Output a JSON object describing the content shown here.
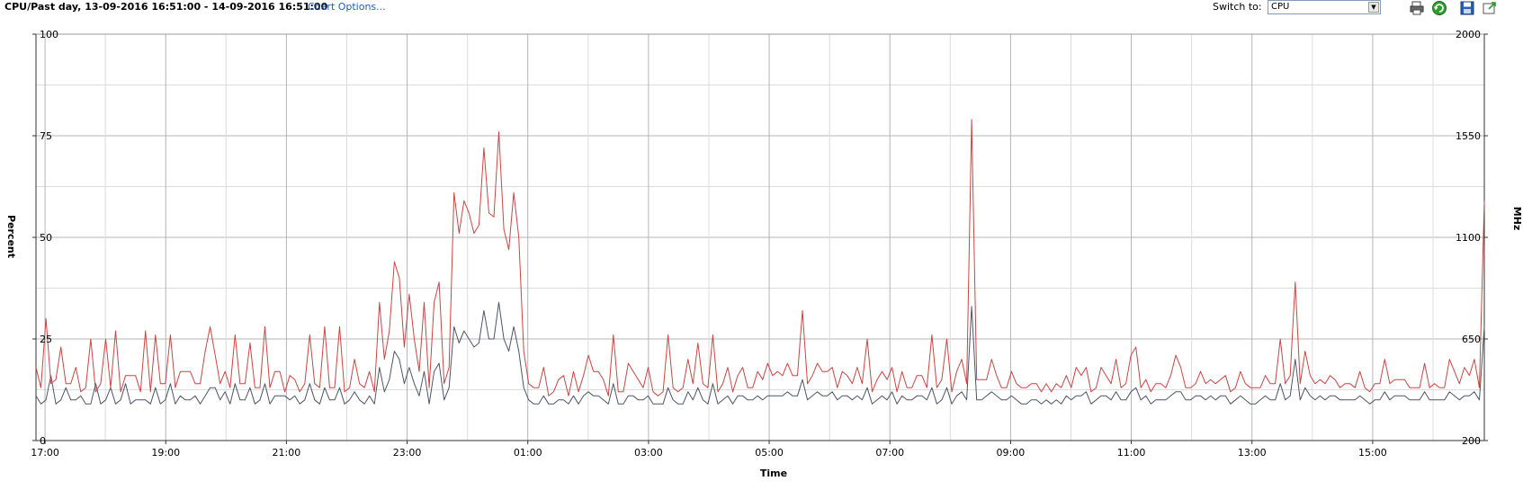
{
  "header": {
    "title": "CPU/Past day, 13-09-2016 16:51:00 - 14-09-2016 16:51:00",
    "chart_options_label": "Chart Options...",
    "switch_label": "Switch to:",
    "switch_value": "CPU"
  },
  "toolbar": {
    "icons": [
      "print-icon",
      "refresh-icon",
      "save-icon",
      "export-icon"
    ]
  },
  "colors": {
    "usage_line": "#cc4444",
    "usage_mhz_line": "#4d5566",
    "grid_major": "#b4b4b4",
    "grid_minor": "#dcdcdc"
  },
  "chart_data": {
    "type": "line",
    "title": "",
    "xlabel": "Time",
    "ylabel": "Percent",
    "y2label": "MHz",
    "ylim": [
      0,
      100
    ],
    "y2lim": [
      200,
      2000
    ],
    "yticks": [
      0,
      25,
      50,
      75,
      100
    ],
    "y2ticks": [
      200,
      650,
      1100,
      1550,
      2000
    ],
    "x_tick_labels": [
      "17:00",
      "19:00",
      "21:00",
      "23:00",
      "01:00",
      "03:00",
      "05:00",
      "07:00",
      "09:00",
      "11:00",
      "13:00",
      "15:00"
    ],
    "x_start": "16:51",
    "x_end": "16:51",
    "grid": true,
    "series": [
      {
        "values": [
          18,
          13,
          30,
          14,
          15,
          23,
          14,
          14,
          18,
          12,
          13,
          25,
          12,
          14,
          25,
          13,
          27,
          12,
          16,
          16,
          16,
          12,
          27,
          12,
          26,
          14,
          14,
          26,
          13,
          17,
          17,
          17,
          14,
          14,
          22,
          28,
          21,
          14,
          17,
          13,
          26,
          14,
          14,
          24,
          13,
          13,
          28,
          13,
          17,
          17,
          12,
          16,
          15,
          12,
          14,
          26,
          14,
          13,
          28,
          13,
          13,
          28,
          12,
          13,
          20,
          14,
          13,
          17,
          12,
          34,
          20,
          27,
          44,
          40,
          23,
          36,
          25,
          17,
          34,
          13,
          34,
          39,
          14,
          18,
          61,
          51,
          59,
          56,
          51,
          53,
          72,
          56,
          55,
          76,
          52,
          47,
          61,
          50,
          22,
          14,
          13,
          13,
          18,
          11,
          12,
          15,
          16,
          11,
          17,
          12,
          16,
          21,
          17,
          17,
          15,
          11,
          26,
          12,
          12,
          19,
          17,
          15,
          13,
          18,
          12,
          11,
          12,
          26,
          13,
          12,
          13,
          20,
          14,
          24,
          14,
          13,
          26,
          12,
          14,
          18,
          12,
          16,
          18,
          13,
          13,
          17,
          15,
          19,
          16,
          17,
          16,
          19,
          16,
          16,
          32,
          14,
          16,
          19,
          17,
          17,
          18,
          13,
          17,
          16,
          14,
          18,
          14,
          25,
          12,
          15,
          17,
          15,
          18,
          12,
          17,
          13,
          13,
          16,
          16,
          13,
          26,
          13,
          15,
          25,
          12,
          17,
          20,
          14,
          79,
          15,
          15,
          15,
          20,
          16,
          13,
          13,
          17,
          14,
          13,
          13,
          14,
          14,
          12,
          14,
          12,
          14,
          13,
          16,
          13,
          18,
          16,
          18,
          12,
          13,
          18,
          16,
          14,
          20,
          13,
          14,
          21,
          23,
          13,
          15,
          12,
          14,
          14,
          13,
          16,
          21,
          18,
          13,
          13,
          14,
          17,
          14,
          15,
          14,
          15,
          16,
          12,
          13,
          17,
          14,
          13,
          13,
          13,
          16,
          14,
          14,
          25,
          14,
          16,
          39,
          14,
          22,
          16,
          14,
          15,
          14,
          16,
          15,
          13,
          14,
          14,
          13,
          17,
          13,
          12,
          14,
          14,
          20,
          14,
          15,
          15,
          15,
          13,
          13,
          13,
          19,
          13,
          14,
          13,
          13,
          20,
          17,
          14,
          18,
          16,
          20,
          13,
          59
        ],
        "color": "#cc4444"
      },
      {
        "values": [
          11,
          9,
          10,
          16,
          9,
          10,
          13,
          10,
          10,
          11,
          9,
          9,
          14,
          9,
          10,
          13,
          9,
          10,
          14,
          9,
          10,
          10,
          10,
          9,
          13,
          9,
          10,
          14,
          9,
          11,
          10,
          10,
          11,
          9,
          11,
          13,
          13,
          10,
          12,
          9,
          14,
          10,
          10,
          13,
          9,
          10,
          14,
          9,
          11,
          11,
          11,
          10,
          11,
          9,
          10,
          14,
          10,
          9,
          13,
          10,
          10,
          13,
          9,
          10,
          12,
          10,
          9,
          11,
          9,
          18,
          12,
          15,
          22,
          20,
          14,
          18,
          14,
          11,
          17,
          9,
          17,
          19,
          10,
          13,
          28,
          24,
          27,
          25,
          23,
          24,
          32,
          25,
          25,
          34,
          25,
          22,
          28,
          22,
          13,
          10,
          9,
          9,
          11,
          9,
          9,
          10,
          10,
          9,
          11,
          9,
          11,
          12,
          11,
          11,
          10,
          9,
          14,
          9,
          9,
          11,
          11,
          10,
          10,
          11,
          9,
          9,
          9,
          13,
          10,
          9,
          9,
          12,
          10,
          13,
          10,
          9,
          14,
          9,
          10,
          11,
          9,
          11,
          11,
          10,
          10,
          11,
          10,
          11,
          11,
          11,
          11,
          12,
          11,
          11,
          15,
          10,
          11,
          12,
          11,
          11,
          12,
          10,
          11,
          11,
          10,
          11,
          10,
          13,
          9,
          10,
          11,
          10,
          12,
          9,
          11,
          10,
          10,
          11,
          11,
          10,
          13,
          9,
          10,
          13,
          9,
          11,
          12,
          10,
          33,
          10,
          10,
          11,
          12,
          11,
          10,
          10,
          11,
          10,
          9,
          9,
          10,
          10,
          9,
          10,
          9,
          10,
          9,
          11,
          10,
          11,
          11,
          12,
          9,
          10,
          11,
          11,
          10,
          12,
          10,
          10,
          12,
          13,
          10,
          11,
          9,
          10,
          10,
          10,
          11,
          12,
          12,
          10,
          10,
          11,
          11,
          10,
          11,
          10,
          11,
          11,
          9,
          10,
          11,
          10,
          9,
          9,
          10,
          11,
          10,
          10,
          14,
          10,
          11,
          20,
          10,
          13,
          11,
          10,
          11,
          10,
          11,
          11,
          10,
          10,
          10,
          10,
          11,
          10,
          9,
          10,
          10,
          12,
          10,
          11,
          11,
          11,
          10,
          10,
          10,
          12,
          10,
          10,
          10,
          10,
          12,
          11,
          10,
          11,
          11,
          12,
          10,
          28
        ],
        "color": "#4d5566"
      }
    ]
  }
}
